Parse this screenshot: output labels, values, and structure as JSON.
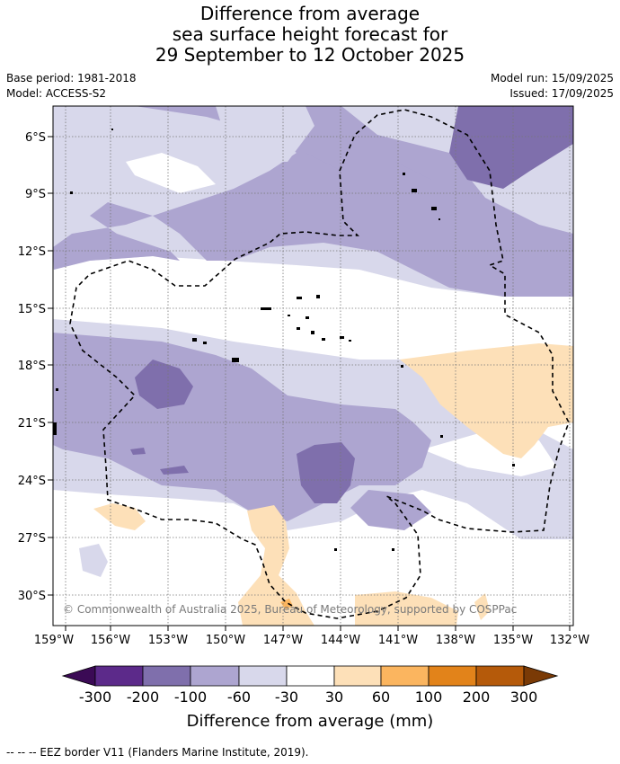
{
  "title": {
    "line1": "Difference from average",
    "line2": "sea surface height forecast for",
    "line3": "29 September to 12 October 2025"
  },
  "meta": {
    "base_period": "Base period: 1981-2018",
    "model": "Model: ACCESS-S2",
    "model_run": "Model run: 15/09/2025",
    "issued": "Issued: 17/09/2025"
  },
  "map": {
    "lon_ticks": [
      "159°W",
      "156°W",
      "153°W",
      "150°W",
      "147°W",
      "144°W",
      "141°W",
      "138°W",
      "135°W",
      "132°W"
    ],
    "lat_ticks": [
      "6°S",
      "9°S",
      "12°S",
      "15°S",
      "18°S",
      "21°S",
      "24°S",
      "27°S",
      "30°S"
    ],
    "lon_range": [
      -159,
      -132
    ],
    "lat_range": [
      -32,
      -4.5
    ],
    "copyright": "© Commonwealth of Australia 2025, Bureau of Meteorology, supported by COSPPac"
  },
  "colorbar": {
    "bins": [
      "-300",
      "-200",
      "-100",
      "-60",
      "-30",
      "30",
      "60",
      "100",
      "200",
      "300"
    ],
    "colors": [
      "#3b0a55",
      "#5c2a8a",
      "#7f6fac",
      "#ada5d0",
      "#d8d8eb",
      "#ffffff",
      "#fde0b8",
      "#fbb55f",
      "#e2831a",
      "#b55a0a",
      "#7a3a06"
    ],
    "title": "Difference from average (mm)"
  },
  "footer": "--  --  -- EEZ border V11 (Flanders Marine Institute, 2019)."
}
